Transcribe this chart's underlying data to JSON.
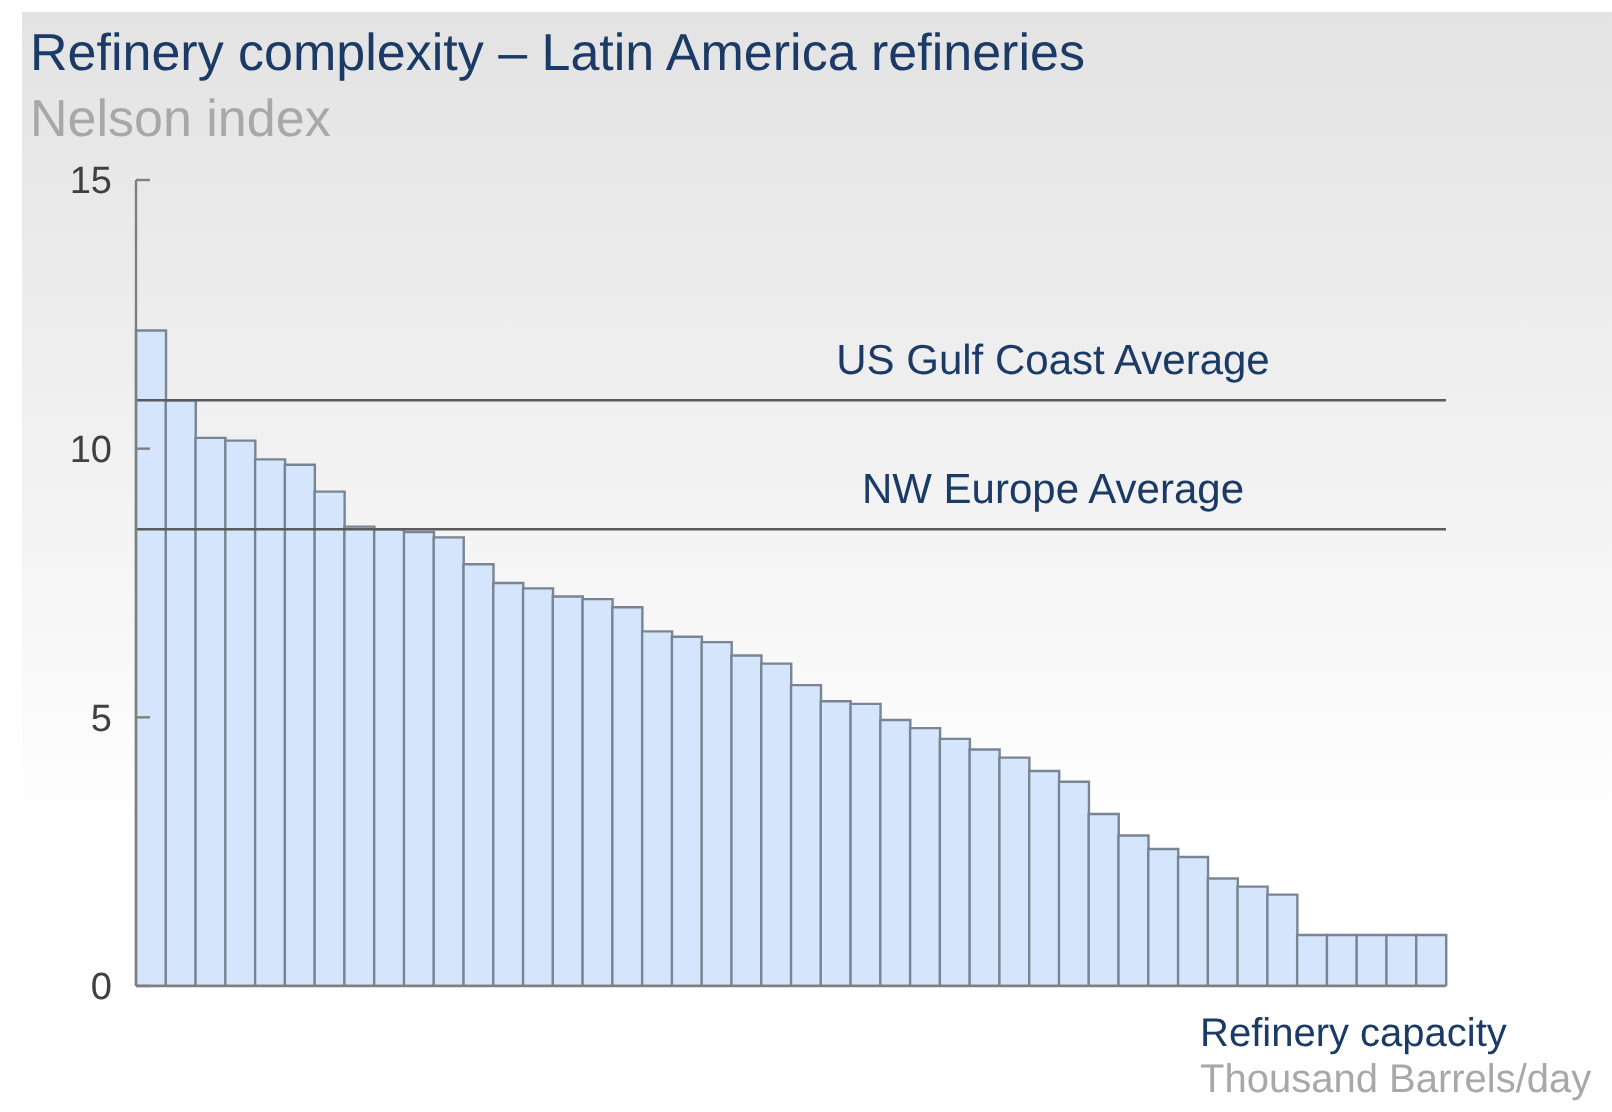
{
  "chart_data": {
    "type": "bar",
    "title": "Refinery complexity – Latin America refineries",
    "ylabel": "Nelson index",
    "xlabel": "Refinery capacity\nThousand Barrels/day",
    "categories": [
      null,
      null,
      null,
      null,
      null,
      null,
      null,
      null,
      null,
      null,
      null,
      null,
      null,
      null,
      null,
      null,
      null,
      null,
      null,
      null,
      null,
      null,
      null,
      null,
      null,
      null,
      null,
      null,
      null,
      null,
      null,
      null,
      null,
      null,
      null,
      null,
      null,
      null,
      null,
      null,
      null,
      null,
      null,
      null
    ],
    "values": [
      12.2,
      10.9,
      10.2,
      10.15,
      9.8,
      9.7,
      9.2,
      8.55,
      8.5,
      8.45,
      8.35,
      7.85,
      7.5,
      7.4,
      7.25,
      7.2,
      7.05,
      6.6,
      6.5,
      6.4,
      6.15,
      6.0,
      5.6,
      5.3,
      5.25,
      4.95,
      4.8,
      4.6,
      4.4,
      4.25,
      4.0,
      3.8,
      3.2,
      2.8,
      2.55,
      2.4,
      2.0,
      1.85,
      1.7,
      0.95,
      0.95,
      0.95,
      0.95,
      0.95
    ],
    "color": "#d5e5fb",
    "ylim": [
      0,
      15
    ],
    "yticks": [
      0,
      5,
      10,
      15
    ],
    "tick_labels": "y",
    "ref_lines": [
      {
        "axis": "y",
        "value": 10.9,
        "label": "US Gulf Coast Average",
        "color": "#5a5a5a"
      },
      {
        "axis": "y",
        "value": 8.5,
        "label": "NW Europe Average",
        "color": "#5a5a5a"
      }
    ]
  }
}
